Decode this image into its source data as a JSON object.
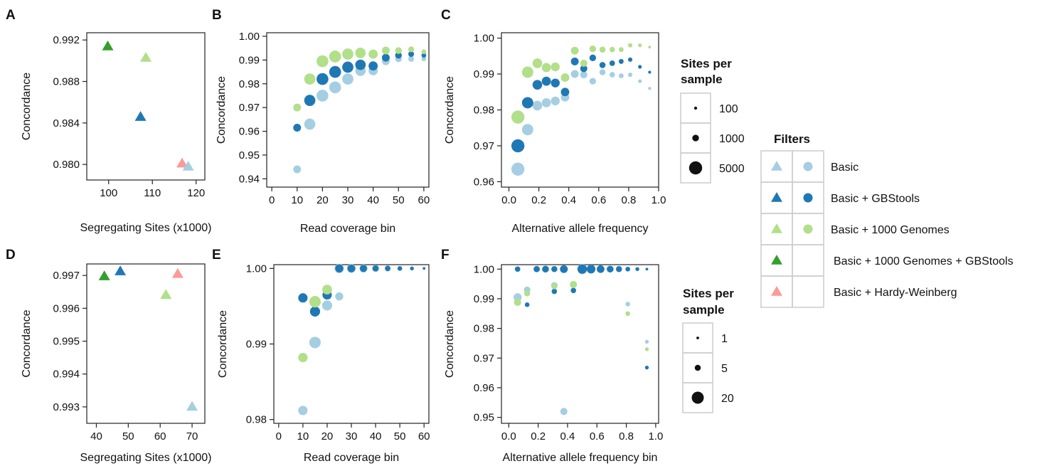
{
  "colors": {
    "basic": "#a6cee3",
    "basic_gbstools": "#1f78b4",
    "basic_1000g": "#b2df8a",
    "basic_1000g_gbstools": "#33a02c",
    "basic_hw": "#fb9a99"
  },
  "chart_data": [
    {
      "panel": "A",
      "type": "scatter",
      "xlabel": "Segregating Sites (x1000)",
      "ylabel": "Concordance",
      "xlim": [
        95,
        122
      ],
      "ylim": [
        0.9785,
        0.9927
      ],
      "xticks": [
        100,
        110,
        120
      ],
      "yticks": [
        0.98,
        0.984,
        0.988,
        0.992
      ],
      "ytick_labels": [
        "0.980",
        "0.984",
        "0.988",
        "0.992"
      ],
      "marker": "triangle",
      "points": [
        {
          "filter": "Basic + 1000 Genomes + GBStools",
          "x": 99.8,
          "y": 0.9914
        },
        {
          "filter": "Basic + 1000 Genomes",
          "x": 108.5,
          "y": 0.9903
        },
        {
          "filter": "Basic + GBStools",
          "x": 107.3,
          "y": 0.9846
        },
        {
          "filter": "Basic + Hardy-Weinberg",
          "x": 116.8,
          "y": 0.9801
        },
        {
          "filter": "Basic",
          "x": 118.2,
          "y": 0.9798
        }
      ]
    },
    {
      "panel": "B",
      "type": "scatter",
      "xlabel": "Read coverage bin",
      "ylabel": "Concordance",
      "xlim": [
        -2,
        62
      ],
      "ylim": [
        0.9365,
        1.0015
      ],
      "xticks": [
        0,
        10,
        20,
        30,
        40,
        50,
        60
      ],
      "yticks": [
        0.94,
        0.95,
        0.96,
        0.97,
        0.98,
        0.99,
        1.0
      ],
      "ytick_labels": [
        "0.94",
        "0.95",
        "0.96",
        "0.97",
        "0.98",
        "0.99",
        "1.00"
      ],
      "size_legend": "sites_per_sample_1",
      "series": [
        {
          "name": "Basic",
          "x": [
            10,
            15,
            20,
            25,
            30,
            35,
            40,
            45,
            50,
            55,
            60
          ],
          "y": [
            0.944,
            0.963,
            0.975,
            0.9785,
            0.982,
            0.9855,
            0.9855,
            0.9895,
            0.9905,
            0.9905,
            0.9905
          ],
          "sizes": [
            1500,
            3500,
            4000,
            4000,
            3500,
            3000,
            2200,
            1500,
            1000,
            700,
            400
          ]
        },
        {
          "name": "Basic + GBStools",
          "x": [
            10,
            15,
            20,
            25,
            30,
            35,
            40,
            45,
            50,
            55,
            60
          ],
          "y": [
            0.9615,
            0.973,
            0.982,
            0.985,
            0.987,
            0.988,
            0.9875,
            0.991,
            0.992,
            0.9925,
            0.992
          ],
          "sizes": [
            1500,
            3500,
            4000,
            4000,
            3500,
            3000,
            2200,
            1500,
            1000,
            700,
            400
          ]
        },
        {
          "name": "Basic + 1000 Genomes",
          "x": [
            10,
            15,
            20,
            25,
            30,
            35,
            40,
            45,
            50,
            55,
            60
          ],
          "y": [
            0.97,
            0.982,
            0.9895,
            0.9915,
            0.9925,
            0.993,
            0.9925,
            0.994,
            0.994,
            0.9945,
            0.9935
          ],
          "sizes": [
            1500,
            3500,
            4000,
            4000,
            3500,
            3000,
            2200,
            1500,
            1000,
            700,
            400
          ]
        }
      ]
    },
    {
      "panel": "C",
      "type": "scatter",
      "xlabel": "Alternative allele frequency",
      "ylabel": "Concordance",
      "xlim": [
        -0.05,
        1.0
      ],
      "ylim": [
        0.9585,
        1.0015
      ],
      "xticks": [
        0.0,
        0.2,
        0.4,
        0.6,
        0.8,
        1.0
      ],
      "xtick_labels": [
        "0.0",
        "0.2",
        "0.4",
        "0.6",
        "0.8",
        "1.0"
      ],
      "yticks": [
        0.96,
        0.97,
        0.98,
        0.99,
        1.0
      ],
      "ytick_labels": [
        "0.96",
        "0.97",
        "0.98",
        "0.99",
        "1.00"
      ],
      "size_legend": "sites_per_sample_1",
      "series": [
        {
          "name": "Basic",
          "x": [
            0.06,
            0.125,
            0.19,
            0.25,
            0.31,
            0.375,
            0.44,
            0.5,
            0.56,
            0.625,
            0.69,
            0.75,
            0.81,
            0.875,
            0.94
          ],
          "y": [
            0.9635,
            0.9745,
            0.9812,
            0.982,
            0.9825,
            0.9835,
            0.99,
            0.9898,
            0.988,
            0.9905,
            0.9898,
            0.9895,
            0.9898,
            0.988,
            0.986
          ],
          "sizes": [
            5000,
            3600,
            2500,
            2200,
            2000,
            1800,
            1500,
            1200,
            1000,
            800,
            600,
            450,
            320,
            200,
            90
          ]
        },
        {
          "name": "Basic + GBStools",
          "x": [
            0.06,
            0.125,
            0.19,
            0.25,
            0.31,
            0.375,
            0.44,
            0.5,
            0.56,
            0.625,
            0.69,
            0.75,
            0.81,
            0.875,
            0.94
          ],
          "y": [
            0.97,
            0.982,
            0.987,
            0.988,
            0.9875,
            0.985,
            0.9935,
            0.9915,
            0.9945,
            0.9925,
            0.993,
            0.9935,
            0.994,
            0.992,
            0.9905
          ],
          "sizes": [
            5000,
            3600,
            2500,
            2200,
            2000,
            1800,
            1500,
            1200,
            1000,
            800,
            600,
            450,
            320,
            200,
            90
          ]
        },
        {
          "name": "Basic + 1000 Genomes",
          "x": [
            0.06,
            0.125,
            0.19,
            0.25,
            0.31,
            0.375,
            0.44,
            0.5,
            0.56,
            0.625,
            0.69,
            0.75,
            0.81,
            0.875,
            0.94
          ],
          "y": [
            0.978,
            0.9905,
            0.993,
            0.9918,
            0.992,
            0.989,
            0.9965,
            0.993,
            0.997,
            0.9968,
            0.9968,
            0.9968,
            0.998,
            0.998,
            0.9975
          ],
          "sizes": [
            5000,
            3600,
            2500,
            2200,
            2000,
            1800,
            1500,
            1200,
            1000,
            800,
            600,
            450,
            320,
            200,
            90
          ]
        }
      ]
    },
    {
      "panel": "D",
      "type": "scatter",
      "xlabel": "Segregating Sites (x1000)",
      "ylabel": "Concordance",
      "xlim": [
        37,
        74
      ],
      "ylim": [
        0.9925,
        0.99735
      ],
      "xticks": [
        40,
        50,
        60,
        70
      ],
      "yticks": [
        0.993,
        0.994,
        0.995,
        0.996,
        0.997
      ],
      "ytick_labels": [
        "0.993",
        "0.994",
        "0.995",
        "0.996",
        "0.997"
      ],
      "marker": "triangle",
      "points": [
        {
          "filter": "Basic + 1000 Genomes + GBStools",
          "x": 42.5,
          "y": 0.99698
        },
        {
          "filter": "Basic + GBStools",
          "x": 47.5,
          "y": 0.99713
        },
        {
          "filter": "Basic + 1000 Genomes",
          "x": 61.8,
          "y": 0.99641
        },
        {
          "filter": "Basic + Hardy-Weinberg",
          "x": 65.5,
          "y": 0.99705
        },
        {
          "filter": "Basic",
          "x": 70.0,
          "y": 0.99301
        }
      ]
    },
    {
      "panel": "E",
      "type": "scatter",
      "xlabel": "Read coverage bin",
      "ylabel": "Concordance",
      "xlim": [
        -2,
        62
      ],
      "ylim": [
        0.9795,
        1.0005
      ],
      "xticks": [
        0,
        10,
        20,
        30,
        40,
        50,
        60
      ],
      "yticks": [
        0.98,
        0.99,
        1.0
      ],
      "ytick_labels": [
        "0.98",
        "0.99",
        "1.00"
      ],
      "size_legend": "sites_per_sample_2",
      "series": [
        {
          "name": "Basic",
          "x": [
            10,
            15,
            20,
            25
          ],
          "y": [
            0.9812,
            0.9902,
            0.9951,
            0.9963
          ],
          "sizes": [
            12,
            18,
            14,
            9
          ]
        },
        {
          "name": "Basic + GBStools",
          "x": [
            10,
            15,
            20
          ],
          "y": [
            0.9961,
            0.9943,
            0.9965
          ],
          "sizes": [
            12,
            14,
            12
          ]
        },
        {
          "name": "Basic + 1000 Genomes",
          "x": [
            10,
            15,
            20
          ],
          "y": [
            0.9882,
            0.9956,
            0.9972
          ],
          "sizes": [
            12,
            18,
            13
          ]
        },
        {
          "name": "Basic (1.00)",
          "x": [
            25,
            30,
            35,
            40,
            45,
            50,
            55,
            60
          ],
          "y": [
            1.0,
            1.0,
            1.0,
            1.0,
            1.0,
            1.0,
            1.0,
            1.0
          ],
          "sizes": [
            12,
            11,
            9,
            7,
            5,
            3,
            2,
            1
          ]
        },
        {
          "name": "Basic + GBStools (1.00)",
          "x": [
            25,
            30,
            35,
            40,
            45,
            50,
            55,
            60
          ],
          "y": [
            1.0,
            1.0,
            1.0,
            1.0,
            1.0,
            1.0,
            1.0,
            1.0
          ],
          "sizes": [
            9,
            8,
            7,
            5,
            4,
            3,
            2,
            1
          ]
        }
      ]
    },
    {
      "panel": "F",
      "type": "scatter",
      "xlabel": "Alternative allele frequency bin",
      "ylabel": "Concordance",
      "xlim": [
        -0.05,
        1.02
      ],
      "ylim": [
        0.948,
        1.0015
      ],
      "xticks": [
        0.0,
        0.2,
        0.4,
        0.6,
        0.8,
        1.0
      ],
      "xtick_labels": [
        "0.0",
        "0.2",
        "0.4",
        "0.6",
        "0.8",
        "1.0"
      ],
      "yticks": [
        0.95,
        0.96,
        0.97,
        0.98,
        0.99,
        1.0
      ],
      "ytick_labels": [
        "0.95",
        "0.96",
        "0.97",
        "0.98",
        "0.99",
        "1.00"
      ],
      "size_legend": "sites_per_sample_2",
      "series": [
        {
          "name": "Basic",
          "x": [
            0.06,
            0.125,
            0.31,
            0.375,
            0.44,
            0.81,
            0.94
          ],
          "y": [
            0.9905,
            0.993,
            0.9945,
            0.952,
            0.9948,
            0.9882,
            0.9755
          ],
          "sizes": [
            9,
            6,
            6,
            7,
            5,
            3,
            2
          ]
        },
        {
          "name": "Basic + GBStools",
          "x": [
            0.125,
            0.31,
            0.44,
            0.94
          ],
          "y": [
            0.988,
            0.9925,
            0.9928,
            0.9668
          ],
          "sizes": [
            3,
            4,
            4,
            2
          ]
        },
        {
          "name": "Basic + 1000 Genomes",
          "x": [
            0.06,
            0.125,
            0.31,
            0.44,
            0.81,
            0.94
          ],
          "y": [
            0.9888,
            0.9918,
            0.9942,
            0.9948,
            0.985,
            0.973
          ],
          "sizes": [
            7,
            5,
            5,
            7,
            3,
            2
          ]
        },
        {
          "name": "Basic (1.00)",
          "x": [
            0.06,
            0.19,
            0.25,
            0.375,
            0.5,
            0.56,
            0.625,
            0.69,
            0.75,
            0.81,
            0.875,
            0.94
          ],
          "y": [
            1,
            1,
            1,
            1,
            1,
            1,
            1,
            1,
            1,
            1,
            1,
            1
          ],
          "sizes": [
            4,
            6,
            7,
            9,
            14,
            11,
            8,
            7,
            5,
            3,
            2,
            1
          ]
        },
        {
          "name": "Basic + GBStools (1.00)",
          "x": [
            0.06,
            0.19,
            0.25,
            0.31,
            0.375,
            0.5,
            0.56,
            0.625,
            0.69,
            0.75,
            0.81,
            0.875,
            0.94
          ],
          "y": [
            1,
            1,
            1,
            1,
            1,
            1,
            1,
            1,
            1,
            1,
            1,
            1,
            1
          ],
          "sizes": [
            4,
            5,
            6,
            5,
            8,
            12,
            10,
            8,
            6,
            5,
            3,
            2,
            1
          ]
        }
      ]
    }
  ],
  "legends": {
    "sites_per_sample_1": {
      "title": [
        "Sites per",
        "sample"
      ],
      "entries": [
        {
          "label": "100",
          "value": 100
        },
        {
          "label": "1000",
          "value": 1000
        },
        {
          "label": "5000",
          "value": 5000
        }
      ]
    },
    "sites_per_sample_2": {
      "title": [
        "Sites per",
        "sample"
      ],
      "entries": [
        {
          "label": "1",
          "value": 1
        },
        {
          "label": "5",
          "value": 5
        },
        {
          "label": "20",
          "value": 20
        }
      ]
    },
    "filters": {
      "title": "Filters",
      "entries": [
        {
          "label": "Basic",
          "color": "#a6cee3",
          "triangle": true,
          "circle": true
        },
        {
          "label": "Basic + GBStools",
          "color": "#1f78b4",
          "triangle": true,
          "circle": true
        },
        {
          "label": "Basic + 1000 Genomes",
          "color": "#b2df8a",
          "triangle": true,
          "circle": true
        },
        {
          "label": "Basic + 1000 Genomes + GBStools",
          "color": "#33a02c",
          "triangle": true,
          "circle": false
        },
        {
          "label": "Basic + Hardy-Weinberg",
          "color": "#fb9a99",
          "triangle": true,
          "circle": false
        }
      ]
    }
  }
}
